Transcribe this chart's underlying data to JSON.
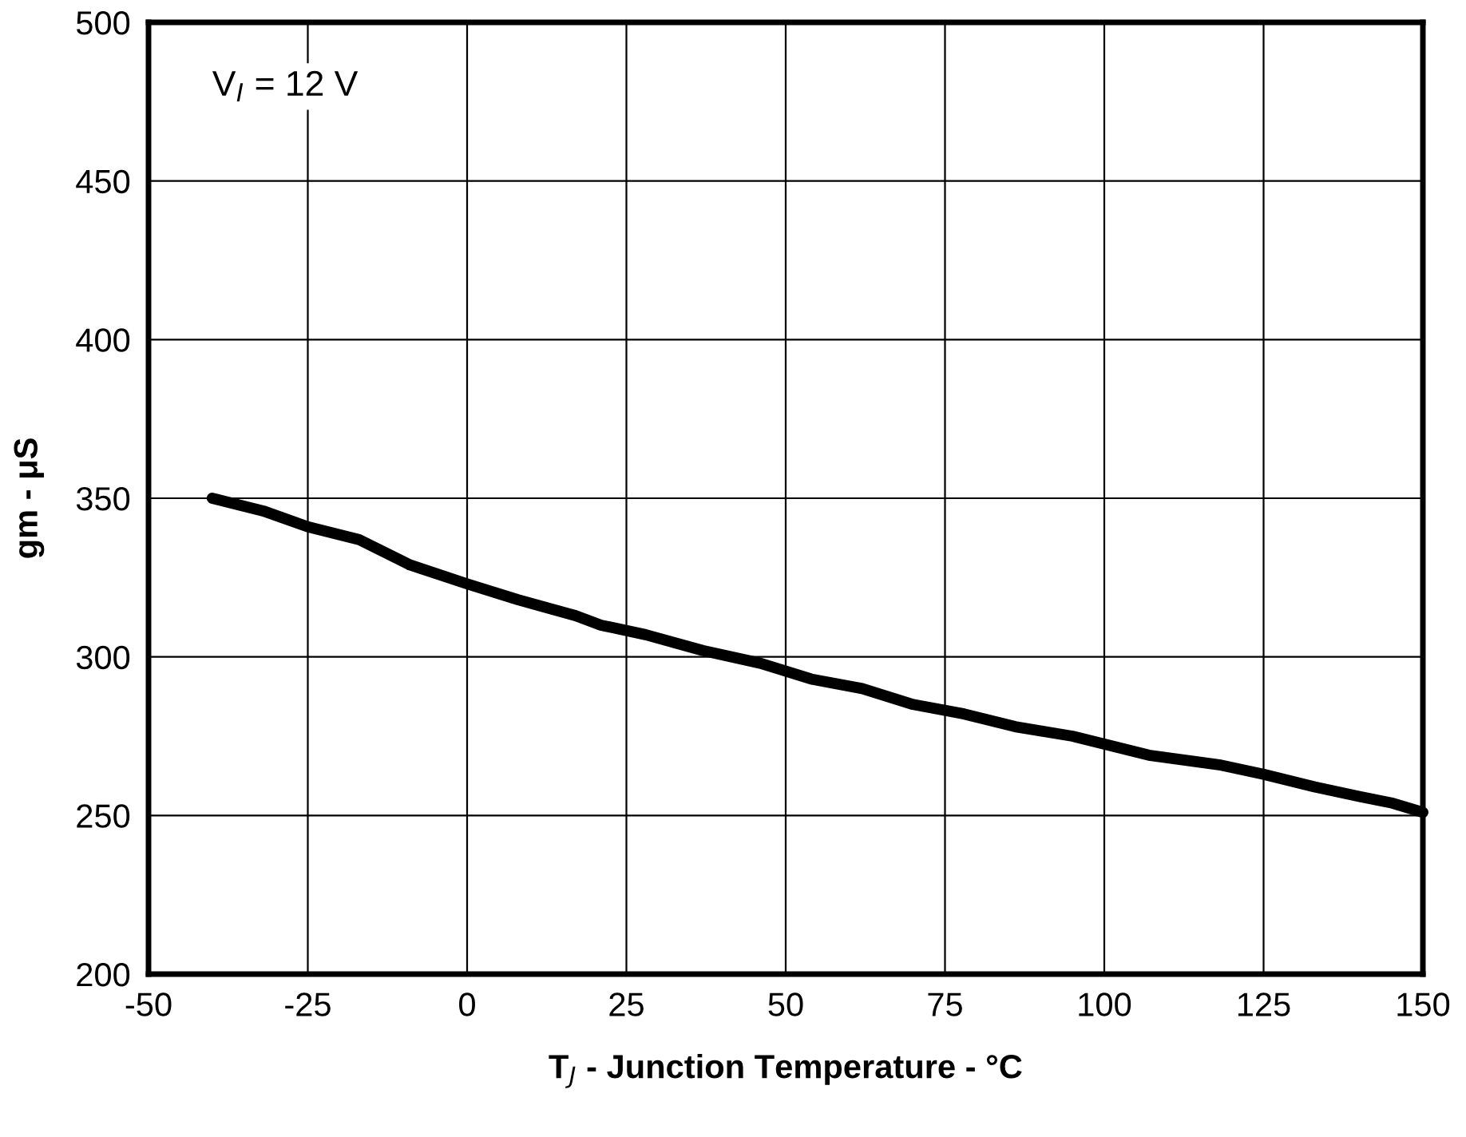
{
  "chart_data": {
    "type": "line",
    "xlabel": "T$_{J}$ - Junction Temperature - °C",
    "ylabel": "gm - μS",
    "annotations": [
      "V$_{I}$ = 12 V"
    ],
    "series": [
      {
        "color": "#000000",
        "x": [
          -40,
          -32,
          -25,
          -17,
          -9,
          0,
          8,
          17,
          21,
          28,
          37,
          46,
          54,
          62,
          70,
          78,
          86,
          95,
          107,
          118,
          125,
          133,
          140,
          145,
          150
        ],
        "values": [
          350,
          346,
          341,
          337,
          329,
          323,
          318,
          313,
          310,
          307,
          302,
          298,
          293,
          290,
          285,
          282,
          278,
          275,
          269,
          266,
          263,
          259,
          256,
          254,
          251
        ]
      }
    ],
    "xlim": [
      -50,
      150
    ],
    "xticks": [
      -50,
      -25,
      0,
      25,
      50,
      75,
      100,
      125,
      150
    ],
    "ylim": [
      200,
      500
    ],
    "yticks": [
      200,
      250,
      300,
      350,
      400,
      450,
      500
    ],
    "grid": true,
    "legend": false,
    "marker": "none",
    "line_style": "solid"
  }
}
